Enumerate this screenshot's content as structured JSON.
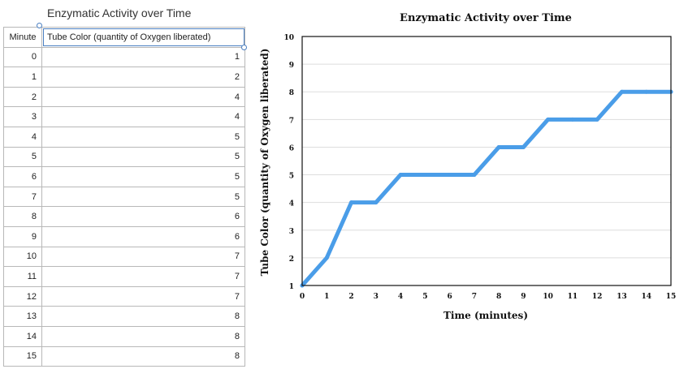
{
  "table": {
    "title": "Enzymatic Activity over Time",
    "headers": [
      "Minute",
      "Tube Color (quantity of Oxygen liberated)"
    ],
    "rows": [
      [
        0,
        1
      ],
      [
        1,
        2
      ],
      [
        2,
        4
      ],
      [
        3,
        4
      ],
      [
        4,
        5
      ],
      [
        5,
        5
      ],
      [
        6,
        5
      ],
      [
        7,
        5
      ],
      [
        8,
        6
      ],
      [
        9,
        6
      ],
      [
        10,
        7
      ],
      [
        11,
        7
      ],
      [
        12,
        7
      ],
      [
        13,
        8
      ],
      [
        14,
        8
      ],
      [
        15,
        8
      ]
    ]
  },
  "chart_data": {
    "type": "line",
    "title": "Enzymatic Activity over Time",
    "xlabel": "Time (minutes)",
    "ylabel": "Tube Color (quantity of Oxygen liberated)",
    "x": [
      0,
      1,
      2,
      3,
      4,
      5,
      6,
      7,
      8,
      9,
      10,
      11,
      12,
      13,
      14,
      15
    ],
    "series": [
      {
        "values": [
          1,
          2,
          4,
          4,
          5,
          5,
          5,
          5,
          6,
          6,
          7,
          7,
          7,
          8,
          8,
          8
        ],
        "color": "#4a9de8"
      }
    ],
    "xlim": [
      0,
      15
    ],
    "ylim": [
      1,
      10
    ],
    "xticks": [
      0,
      1,
      2,
      3,
      4,
      5,
      6,
      7,
      8,
      9,
      10,
      11,
      12,
      13,
      14,
      15
    ],
    "yticks": [
      1,
      2,
      3,
      4,
      5,
      6,
      7,
      8,
      9,
      10
    ],
    "grid": true,
    "legend": "none"
  }
}
